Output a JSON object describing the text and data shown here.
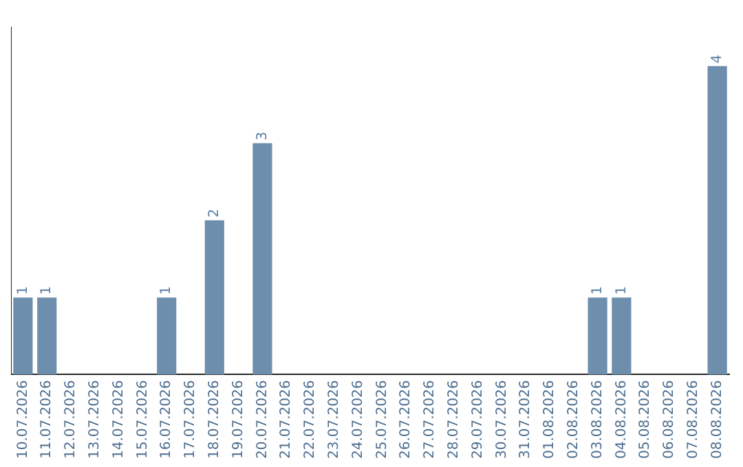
{
  "chart_data": {
    "type": "bar",
    "categories": [
      "10.07.2026",
      "11.07.2026",
      "12.07.2026",
      "13.07.2026",
      "14.07.2026",
      "15.07.2026",
      "16.07.2026",
      "17.07.2026",
      "18.07.2026",
      "19.07.2026",
      "20.07.2026",
      "21.07.2026",
      "22.07.2026",
      "23.07.2026",
      "24.07.2026",
      "25.07.2026",
      "26.07.2026",
      "27.07.2026",
      "28.07.2026",
      "29.07.2026",
      "30.07.2026",
      "31.07.2026",
      "01.08.2026",
      "02.08.2026",
      "03.08.2026",
      "04.08.2026",
      "05.08.2026",
      "06.08.2026",
      "07.08.2026",
      "08.08.2026"
    ],
    "values": [
      1,
      1,
      0,
      0,
      0,
      0,
      1,
      0,
      2,
      0,
      3,
      0,
      0,
      0,
      0,
      0,
      0,
      0,
      0,
      0,
      0,
      0,
      0,
      0,
      1,
      1,
      0,
      0,
      0,
      4
    ],
    "color": "#6d8eac",
    "value_labels": [
      "1",
      "1",
      null,
      null,
      null,
      null,
      "1",
      null,
      "2",
      null,
      "3",
      null,
      null,
      null,
      null,
      null,
      null,
      null,
      null,
      null,
      null,
      null,
      null,
      null,
      "1",
      "1",
      null,
      null,
      null,
      "4"
    ],
    "grid": false,
    "legend": false
  }
}
